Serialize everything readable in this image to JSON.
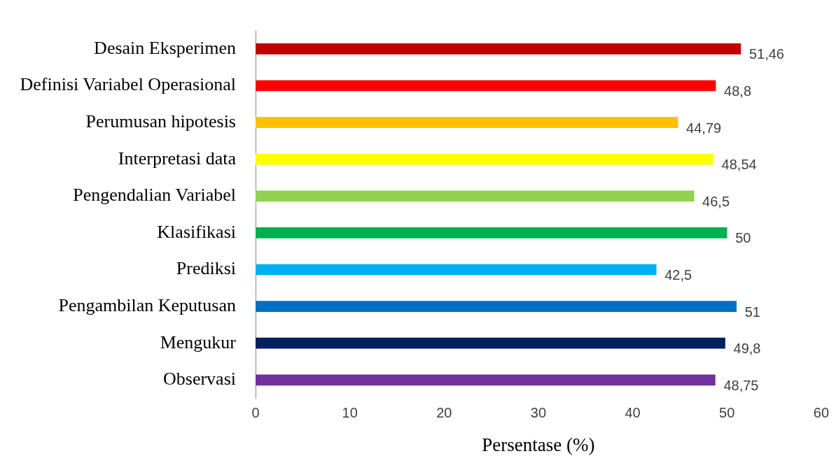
{
  "chart_data": {
    "type": "bar",
    "orientation": "horizontal",
    "xlabel": "Persentase (%)",
    "categories": [
      "Desain Eksperimen",
      "Definisi Variabel Operasional",
      "Perumusan hipotesis",
      "Interpretasi data",
      "Pengendalian Variabel",
      "Klasifikasi",
      "Prediksi",
      "Pengambilan Keputusan",
      "Mengukur",
      "Observasi"
    ],
    "values": [
      51.46,
      48.8,
      44.79,
      48.54,
      46.5,
      50,
      42.5,
      51,
      49.8,
      48.75
    ],
    "value_labels": [
      "51,46",
      "48,8",
      "44,79",
      "48,54",
      "46,5",
      "50",
      "42,5",
      "51",
      "49,8",
      "48,75"
    ],
    "colors": [
      "#c00000",
      "#ff0000",
      "#ffc000",
      "#ffff00",
      "#92d050",
      "#00b050",
      "#00b0f0",
      "#0070c0",
      "#002060",
      "#7030a0"
    ],
    "xlim": [
      0,
      60
    ],
    "xticks": [
      0,
      10,
      20,
      30,
      40,
      50,
      60
    ],
    "grid": false,
    "legend": false
  }
}
